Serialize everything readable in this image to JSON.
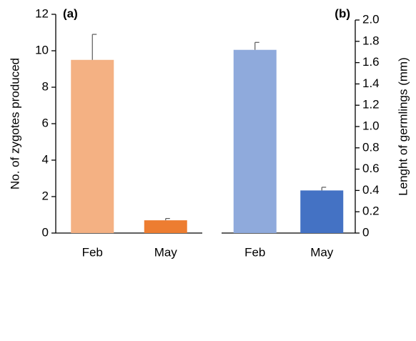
{
  "chart_data": [
    {
      "type": "bar",
      "title": "(a)",
      "ylabel": "No. of zygotes produced",
      "categories": [
        "Feb",
        "May"
      ],
      "values": [
        9.5,
        0.7
      ],
      "errors": [
        1.4,
        0.1
      ],
      "colors": [
        "#f4b183",
        "#ed7d31"
      ],
      "ylim": [
        0,
        12
      ],
      "yticks": [
        0,
        2,
        4,
        6,
        8,
        10,
        12
      ],
      "axis_side": "left"
    },
    {
      "type": "bar",
      "title": "(b)",
      "ylabel": "Lenght of germlings (mm)",
      "categories": [
        "Feb",
        "May"
      ],
      "values": [
        1.72,
        0.4
      ],
      "errors": [
        0.07,
        0.03
      ],
      "colors": [
        "#8faadc",
        "#4472c4"
      ],
      "ylim": [
        0,
        2
      ],
      "yticks": [
        0,
        0.2,
        0.4,
        0.6,
        0.8,
        {
          "value": 1,
          "label": "1.0"
        },
        1.2,
        1.4,
        1.6,
        1.8,
        {
          "value": 2,
          "label": "2.0"
        }
      ],
      "axis_side": "right"
    }
  ]
}
